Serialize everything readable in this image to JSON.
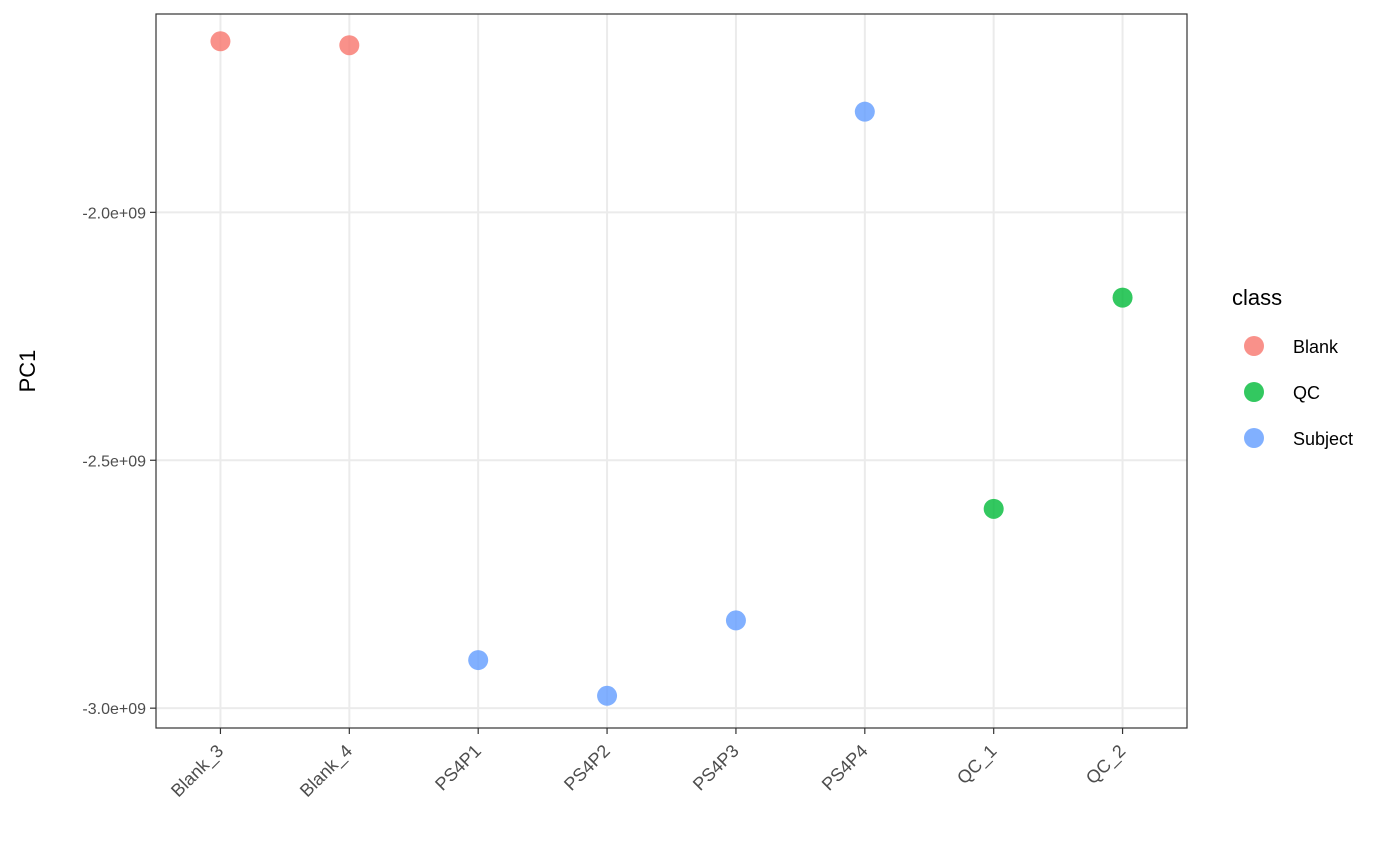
{
  "chart_data": {
    "type": "scatter",
    "title": "",
    "xlabel": "",
    "ylabel": "PC1",
    "categories": [
      "Blank_3",
      "Blank_4",
      "PS4P1",
      "PS4P2",
      "PS4P3",
      "PS4P4",
      "QC_1",
      "QC_2"
    ],
    "ylim": [
      -3040000000.0,
      -1600000000.0
    ],
    "yticks": [
      -3000000000.0,
      -2500000000.0,
      -2000000000.0
    ],
    "ytick_labels": [
      "-3.0e+09",
      "-2.5e+09",
      "-2.0e+09"
    ],
    "grid": true,
    "legend_position": "right",
    "legend_title": "class",
    "series": [
      {
        "name": "Blank",
        "color": "#F8766D",
        "points": [
          {
            "x": "Blank_3",
            "y": -1655000000.0
          },
          {
            "x": "Blank_4",
            "y": -1663000000.0
          }
        ]
      },
      {
        "name": "QC",
        "color": "#00BA38",
        "points": [
          {
            "x": "QC_1",
            "y": -2598000000.0
          },
          {
            "x": "QC_2",
            "y": -2172000000.0
          }
        ]
      },
      {
        "name": "Subject",
        "color": "#619CFF",
        "points": [
          {
            "x": "PS4P1",
            "y": -2903000000.0
          },
          {
            "x": "PS4P2",
            "y": -2975000000.0
          },
          {
            "x": "PS4P3",
            "y": -2823000000.0
          },
          {
            "x": "PS4P4",
            "y": -1797000000.0
          }
        ]
      }
    ]
  }
}
